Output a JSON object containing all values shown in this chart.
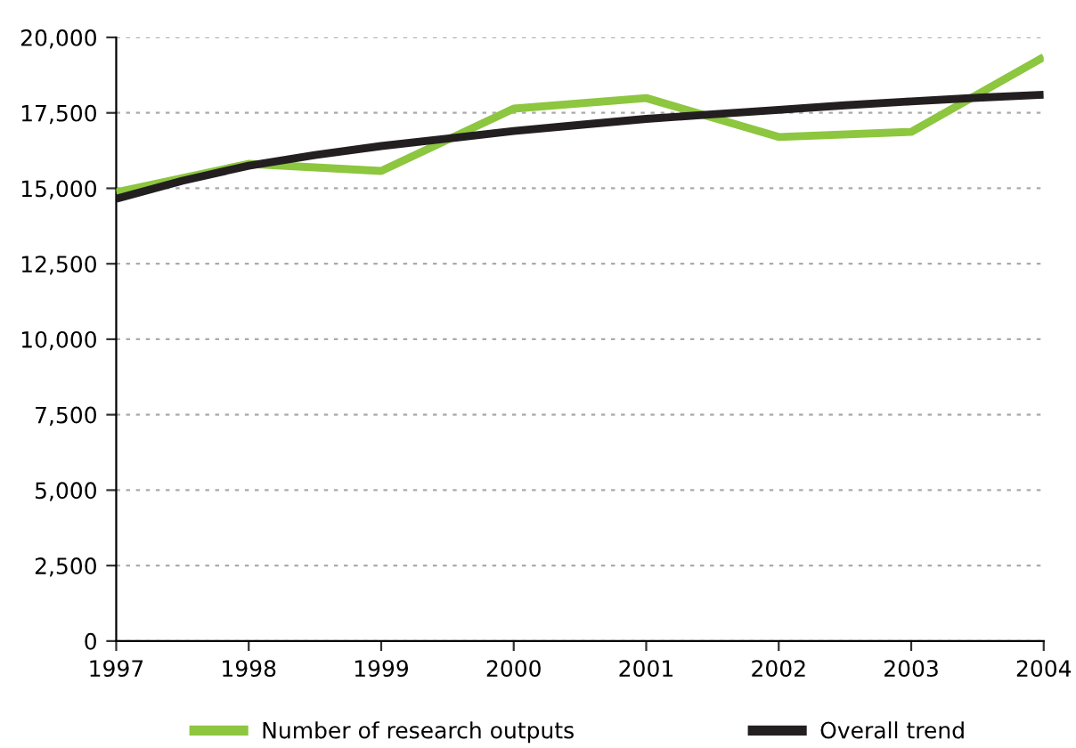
{
  "chart_data": {
    "type": "line",
    "x": [
      1997,
      1998,
      1999,
      2000,
      2001,
      2002,
      2003,
      2004
    ],
    "series": [
      {
        "name": "Number of research outputs",
        "color": "#8dc63f",
        "values": [
          14870,
          15810,
          15575,
          17640,
          17990,
          16700,
          16870,
          19350
        ]
      },
      {
        "name": "Overall trend",
        "color": "#231f20",
        "x": [
          1997,
          1997.5,
          1998,
          1998.5,
          1999,
          1999.5,
          2000,
          2000.5,
          2001,
          2001.5,
          2002,
          2002.5,
          2003,
          2003.5,
          2004
        ],
        "values": [
          14650,
          15250,
          15750,
          16100,
          16400,
          16650,
          16900,
          17100,
          17300,
          17450,
          17600,
          17750,
          17880,
          18000,
          18100
        ]
      }
    ],
    "xlim": [
      1997,
      2004
    ],
    "xticks": [
      1997,
      1998,
      1999,
      2000,
      2001,
      2002,
      2003,
      2004
    ],
    "ylim": [
      0,
      20000
    ],
    "yticks": [
      {
        "value": 0,
        "label": "0"
      },
      {
        "value": 2500,
        "label": "2,500"
      },
      {
        "value": 5000,
        "label": "5,000"
      },
      {
        "value": 7500,
        "label": "7,500"
      },
      {
        "value": 10000,
        "label": "10,000"
      },
      {
        "value": 12500,
        "label": "12,500"
      },
      {
        "value": 15000,
        "label": "15,000"
      },
      {
        "value": 17500,
        "label": "17,500"
      },
      {
        "value": 20000,
        "label": "20,000"
      }
    ],
    "grid": "y",
    "legend": "bottom",
    "marker": "none",
    "line_style": "solid"
  }
}
